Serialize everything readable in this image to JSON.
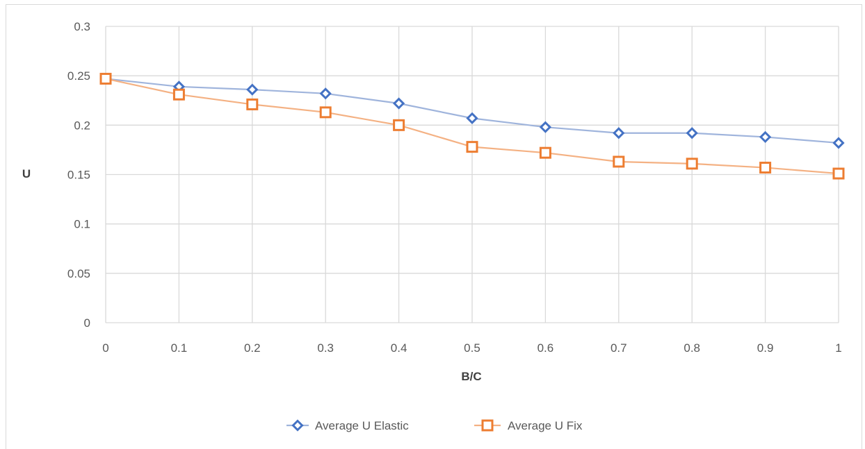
{
  "chart_data": {
    "type": "line",
    "title": "",
    "xlabel": "B/C",
    "ylabel": "U",
    "x": [
      0,
      0.1,
      0.2,
      0.3,
      0.4,
      0.5,
      0.6,
      0.7,
      0.8,
      0.9,
      1
    ],
    "x_tick_labels": [
      "0",
      "0.1",
      "0.2",
      "0.3",
      "0.4",
      "0.5",
      "0.6",
      "0.7",
      "0.8",
      "0.9",
      "1"
    ],
    "xlim": [
      0,
      1
    ],
    "ylim": [
      0,
      0.3
    ],
    "y_ticks": [
      0,
      0.05,
      0.1,
      0.15,
      0.2,
      0.25,
      0.3
    ],
    "y_tick_labels": [
      "0",
      "0.05",
      "0.1",
      "0.15",
      "0.2",
      "0.25",
      "0.3"
    ],
    "grid": true,
    "legend_position": "bottom",
    "series": [
      {
        "name": "Average U Elastic",
        "marker": "diamond",
        "line_color": "#9fb4dc",
        "marker_color": "#4472c4",
        "values": [
          0.247,
          0.239,
          0.236,
          0.232,
          0.222,
          0.207,
          0.198,
          0.192,
          0.192,
          0.188,
          0.182
        ]
      },
      {
        "name": "Average U Fix",
        "marker": "square",
        "line_color": "#f4b183",
        "marker_color": "#ed7d31",
        "values": [
          0.247,
          0.231,
          0.221,
          0.213,
          0.2,
          0.178,
          0.172,
          0.163,
          0.161,
          0.157,
          0.151
        ]
      }
    ]
  }
}
